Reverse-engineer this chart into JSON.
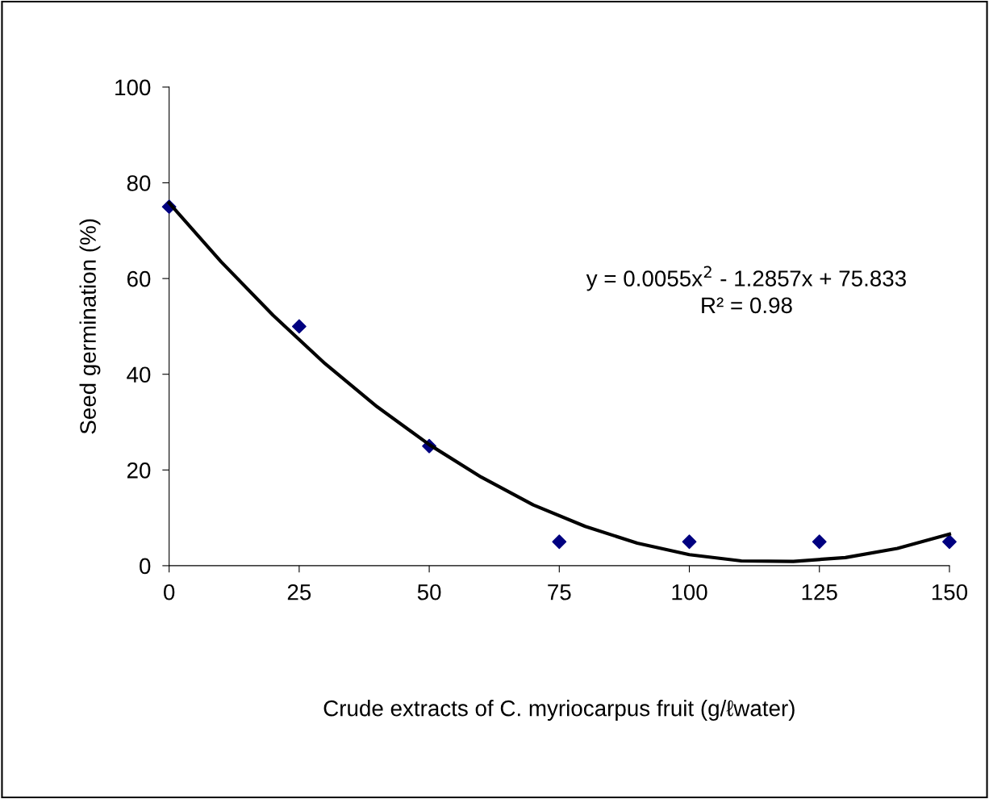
{
  "chart_data": {
    "type": "scatter",
    "xlabel": "Crude extracts of C. myriocarpus fruit (g/ℓwater)",
    "ylabel": "Seed germination (%)",
    "x": [
      0,
      25,
      50,
      75,
      100,
      125,
      150
    ],
    "series": [
      {
        "type": "scatter",
        "color": "#000080",
        "marker": "diamond",
        "values": [
          75,
          50,
          25,
          5,
          5,
          5,
          5
        ]
      },
      {
        "type": "line",
        "color": "#000000",
        "marker": "none",
        "line_style": "solid",
        "x": [
          0,
          10,
          20,
          30,
          40,
          50,
          60,
          70,
          80,
          90,
          100,
          110,
          120,
          130,
          140,
          150
        ],
        "values": [
          75.8,
          63.5,
          52.3,
          42.2,
          33.2,
          25.3,
          18.5,
          12.7,
          8.2,
          4.7,
          2.3,
          1.0,
          0.9,
          1.7,
          3.6,
          6.6
        ]
      }
    ],
    "xlim": [
      0,
      150
    ],
    "xticks": [
      0,
      25,
      50,
      75,
      100,
      125,
      150
    ],
    "ylim": [
      0,
      100
    ],
    "yticks": [
      0,
      20,
      40,
      60,
      80,
      100
    ],
    "grid": false,
    "legend": false,
    "annotations": [
      "y = 0.0055x$^{2}$ - 1.2857x + 75.833",
      "R² = 0.98"
    ]
  }
}
